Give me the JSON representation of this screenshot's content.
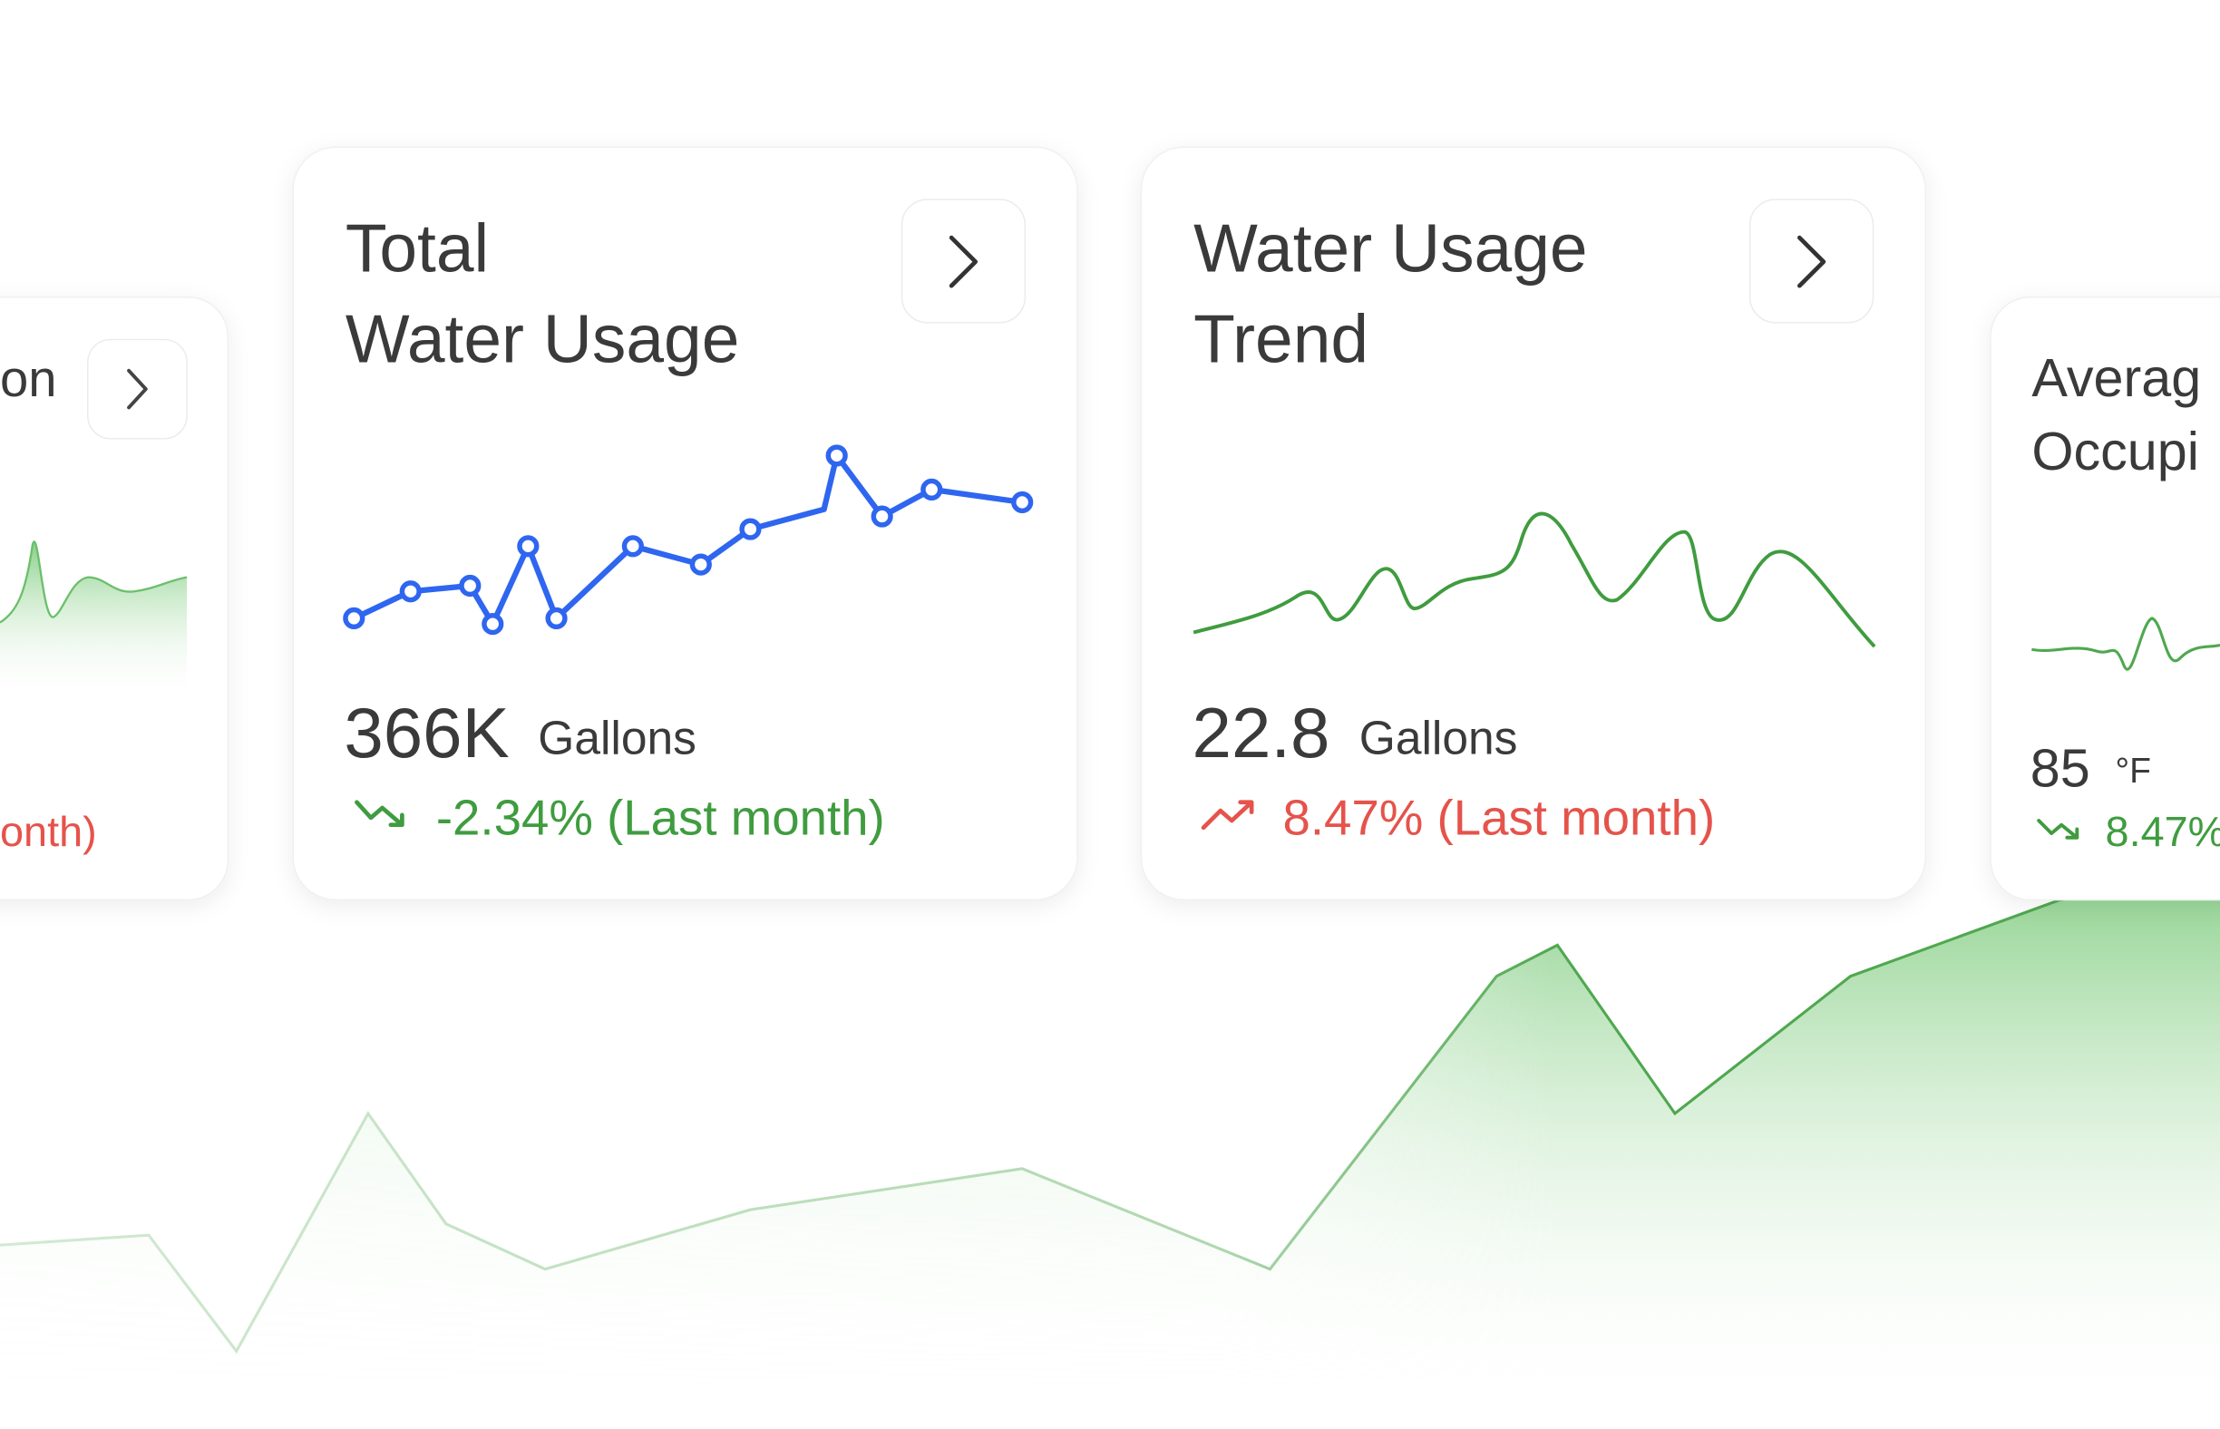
{
  "cards": [
    {
      "title": [
        "on"
      ],
      "change": "onth)"
    },
    {
      "title": [
        "Total",
        "Water Usage"
      ],
      "value": "366K",
      "unit": "Gallons",
      "change": "-2.34% (Last month)"
    },
    {
      "title": [
        "Water Usage",
        "Trend"
      ],
      "value": "22.8",
      "unit": "Gallons",
      "change": "8.47% (Last month)"
    },
    {
      "title": [
        "Averag",
        "Occupi"
      ],
      "value": "85",
      "unit": "°F",
      "change": "8.47%"
    }
  ]
}
